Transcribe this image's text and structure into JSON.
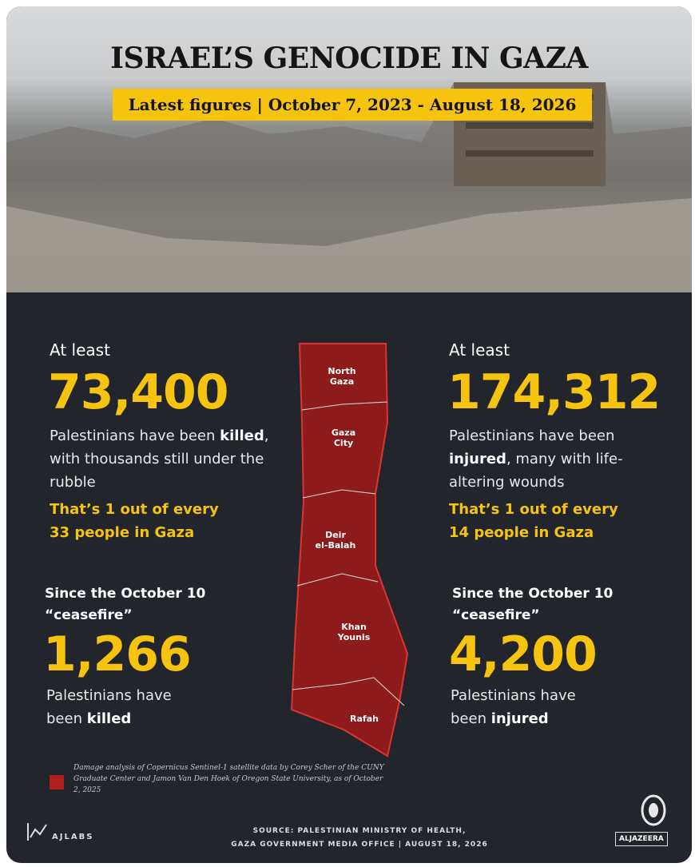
{
  "header": {
    "title": "ISRAEL’S GENOCIDE IN GAZA",
    "subtitle": "Latest figures | October 7, 2023 - August 18, 2026"
  },
  "stats": [
    {
      "intro": "At least",
      "number": "73,400",
      "segments": [
        {
          "text": "Palestinians have been ",
          "bold": false
        },
        {
          "text": "killed",
          "bold": true
        },
        {
          "text": ", with thousands still under the rubble",
          "bold": false
        }
      ],
      "highlight": [
        "That’s 1 out of every",
        "33 people in Gaza"
      ]
    },
    {
      "intro": "At least",
      "number": "174,312",
      "segments": [
        {
          "text": "Palestinians have been ",
          "bold": false
        },
        {
          "text": "injured",
          "bold": true
        },
        {
          "text": ", many with life-altering wounds",
          "bold": false
        }
      ],
      "highlight": [
        "That’s 1 out of every",
        "14 people in Gaza"
      ]
    }
  ],
  "ceasefire": [
    {
      "intro": [
        "Since the October 10",
        "“ceasefire”"
      ],
      "number": "1,266",
      "segments": [
        {
          "text": "Palestinians have been ",
          "bold": false
        },
        {
          "text": "killed",
          "bold": true
        }
      ]
    },
    {
      "intro": [
        "Since the October 10",
        "“ceasefire”"
      ],
      "number": "4,200",
      "segments": [
        {
          "text": "Palestinians have been ",
          "bold": false
        },
        {
          "text": "injured",
          "bold": true
        }
      ]
    }
  ],
  "map": {
    "regions": [
      [
        "North",
        "Gaza"
      ],
      [
        "Gaza",
        "City"
      ],
      [
        "Deir",
        "el-Balah"
      ],
      [
        "Khan",
        "Younis"
      ],
      [
        "Rafah"
      ]
    ]
  },
  "legend_note": "Damage analysis of Copernicus Sentinel-1 satellite data by Corey Scher of the CUNY Graduate Center and Jamon Van Den Hoek of Oregon State University, as of October 2, 2025",
  "source": [
    "SOURCE: PALESTINIAN MINISTRY OF HEALTH,",
    "GAZA GOVERNMENT MEDIA OFFICE | AUGUST 18, 2026"
  ],
  "logos": {
    "left": "AJLABS",
    "right": "ALJAZEERA"
  }
}
